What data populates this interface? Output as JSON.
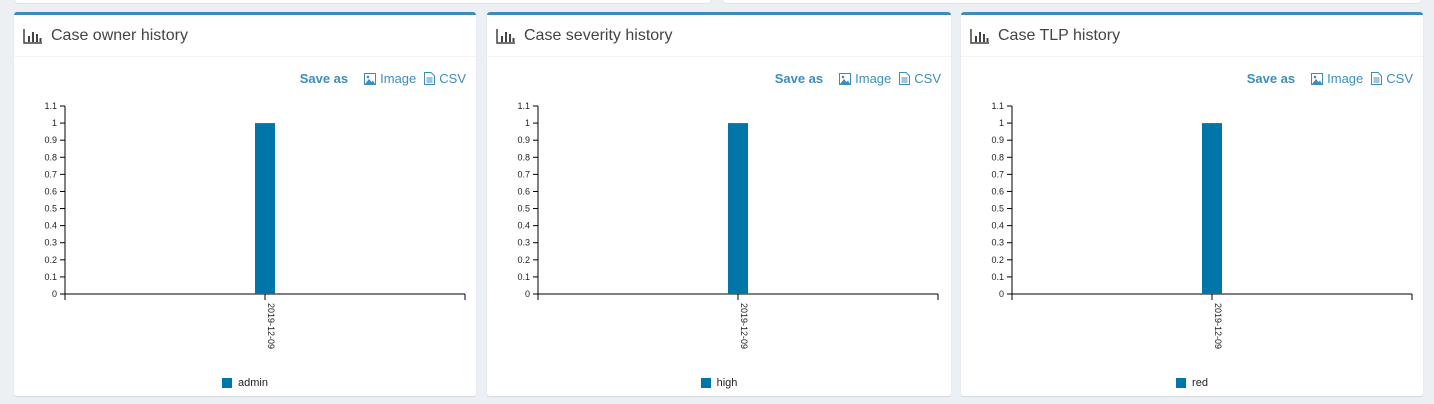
{
  "save_bar": {
    "save_label": "Save as",
    "image_label": "Image",
    "csv_label": "CSV"
  },
  "chart_data": [
    {
      "type": "bar",
      "title": "Case owner history",
      "categories": [
        "2019-12-09"
      ],
      "series": [
        {
          "name": "admin",
          "values": [
            1
          ],
          "color": "#0076a8"
        }
      ],
      "ylim": [
        0,
        1.1
      ],
      "yticks": [
        "0",
        "0.1",
        "0.2",
        "0.3",
        "0.4",
        "0.5",
        "0.6",
        "0.7",
        "0.8",
        "0.9",
        "1",
        "1.1"
      ],
      "legend": "bottom"
    },
    {
      "type": "bar",
      "title": "Case severity history",
      "categories": [
        "2019-12-09"
      ],
      "series": [
        {
          "name": "high",
          "values": [
            1
          ],
          "color": "#0076a8"
        }
      ],
      "ylim": [
        0,
        1.1
      ],
      "yticks": [
        "0",
        "0.1",
        "0.2",
        "0.3",
        "0.4",
        "0.5",
        "0.6",
        "0.7",
        "0.8",
        "0.9",
        "1",
        "1.1"
      ],
      "legend": "bottom"
    },
    {
      "type": "bar",
      "title": "Case TLP history",
      "categories": [
        "2019-12-09"
      ],
      "series": [
        {
          "name": "red",
          "values": [
            1
          ],
          "color": "#0076a8"
        }
      ],
      "ylim": [
        0,
        1.1
      ],
      "yticks": [
        "0",
        "0.1",
        "0.2",
        "0.3",
        "0.4",
        "0.5",
        "0.6",
        "0.7",
        "0.8",
        "0.9",
        "1",
        "1.1"
      ],
      "legend": "bottom"
    }
  ]
}
